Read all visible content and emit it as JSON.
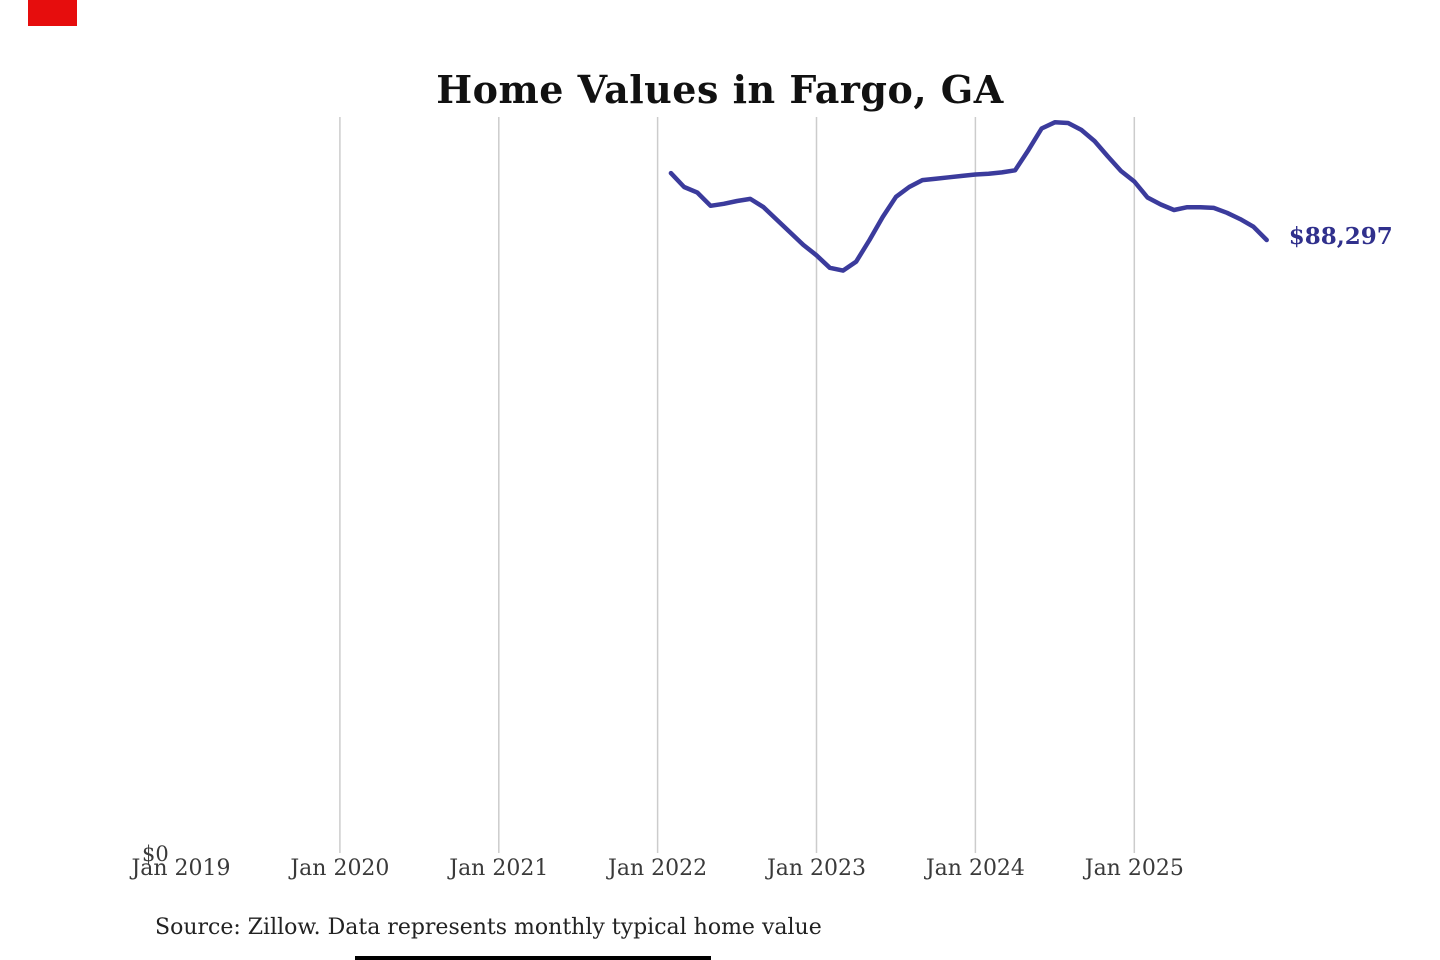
{
  "source": {
    "text": "Source: Zillow. Data represents monthly typical home value"
  },
  "chart_data": {
    "type": "line",
    "title": "Home Values in Fargo, GA",
    "x_axis": {
      "tick_labels": [
        "Jan 2019",
        "Jan 2020",
        "Jan 2021",
        "Jan 2022",
        "Jan 2023",
        "Jan 2024",
        "Jan 2025"
      ],
      "gridline_years": [
        2020,
        2021,
        2022,
        2023,
        2024,
        2025
      ]
    },
    "y_axis": {
      "tick_labels": [
        "$0"
      ],
      "min": 0,
      "max": 106000
    },
    "grid": {
      "color": "#cccccc",
      "vertical": true,
      "horizontal": false
    },
    "legend": {
      "visible": false
    },
    "end_label": {
      "text": "$88,297",
      "color": "#30308c"
    },
    "series": [
      {
        "name": "Monthly typical home value",
        "color": "#3b3b9c",
        "points": [
          {
            "date": "Feb 2022",
            "value": 97900
          },
          {
            "date": "Mar 2022",
            "value": 95900
          },
          {
            "date": "Apr 2022",
            "value": 95100
          },
          {
            "date": "May 2022",
            "value": 93200
          },
          {
            "date": "Jun 2022",
            "value": 93500
          },
          {
            "date": "Jul 2022",
            "value": 93900
          },
          {
            "date": "Aug 2022",
            "value": 94200
          },
          {
            "date": "Sep 2022",
            "value": 93000
          },
          {
            "date": "Oct 2022",
            "value": 91200
          },
          {
            "date": "Nov 2022",
            "value": 89400
          },
          {
            "date": "Dec 2022",
            "value": 87600
          },
          {
            "date": "Jan 2023",
            "value": 86100
          },
          {
            "date": "Feb 2023",
            "value": 84300
          },
          {
            "date": "Mar 2023",
            "value": 83900
          },
          {
            "date": "Apr 2023",
            "value": 85200
          },
          {
            "date": "May 2023",
            "value": 88300
          },
          {
            "date": "Jun 2023",
            "value": 91600
          },
          {
            "date": "Jul 2023",
            "value": 94500
          },
          {
            "date": "Aug 2023",
            "value": 95900
          },
          {
            "date": "Sep 2023",
            "value": 96900
          },
          {
            "date": "Oct 2023",
            "value": 97100
          },
          {
            "date": "Nov 2023",
            "value": 97300
          },
          {
            "date": "Dec 2023",
            "value": 97500
          },
          {
            "date": "Jan 2024",
            "value": 97700
          },
          {
            "date": "Feb 2024",
            "value": 97800
          },
          {
            "date": "Mar 2024",
            "value": 98000
          },
          {
            "date": "Apr 2024",
            "value": 98300
          },
          {
            "date": "May 2024",
            "value": 101200
          },
          {
            "date": "Jun 2024",
            "value": 104300
          },
          {
            "date": "Jul 2024",
            "value": 105200
          },
          {
            "date": "Aug 2024",
            "value": 105100
          },
          {
            "date": "Sep 2024",
            "value": 104100
          },
          {
            "date": "Oct 2024",
            "value": 102500
          },
          {
            "date": "Nov 2024",
            "value": 100300
          },
          {
            "date": "Dec 2024",
            "value": 98200
          },
          {
            "date": "Jan 2025",
            "value": 96700
          },
          {
            "date": "Feb 2025",
            "value": 94400
          },
          {
            "date": "Mar 2025",
            "value": 93400
          },
          {
            "date": "Apr 2025",
            "value": 92600
          },
          {
            "date": "May 2025",
            "value": 93000
          },
          {
            "date": "Jun 2025",
            "value": 93000
          },
          {
            "date": "Jul 2025",
            "value": 92900
          },
          {
            "date": "Aug 2025",
            "value": 92200
          },
          {
            "date": "Sep 2025",
            "value": 91300
          },
          {
            "date": "Oct 2025",
            "value": 90200
          },
          {
            "date": "Nov 2025",
            "value": 88297
          }
        ]
      }
    ]
  },
  "decorations": {
    "red_marker_color": "#e60d0d",
    "bottom_bar_color": "#000000"
  }
}
